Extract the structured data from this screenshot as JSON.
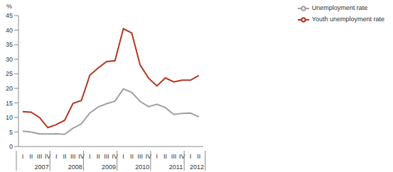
{
  "chart_data": {
    "type": "line",
    "ylabel": "%",
    "categories": [
      "I",
      "II",
      "III",
      "IV",
      "I",
      "II",
      "III",
      "IV",
      "I",
      "II",
      "III",
      "IV",
      "I",
      "II",
      "III",
      "IV",
      "I",
      "II",
      "III",
      "IV",
      "I",
      "II"
    ],
    "years": [
      "2007",
      "2007",
      "2007",
      "2007",
      "2008",
      "2008",
      "2008",
      "2008",
      "2009",
      "2009",
      "2009",
      "2009",
      "2010",
      "2010",
      "2010",
      "2010",
      "2011",
      "2011",
      "2011",
      "2011",
      "2012",
      "2012"
    ],
    "series": [
      {
        "name": "Youth unemployment rate",
        "color": "#b5341e",
        "values": [
          12,
          11.8,
          10,
          6.5,
          7.5,
          9,
          14.8,
          15.8,
          24.5,
          27,
          29.2,
          29.5,
          40.5,
          39,
          28,
          23.5,
          20.8,
          23.6,
          22.2,
          22.8,
          22.8,
          24.4
        ]
      },
      {
        "name": "Unemployment rate",
        "color": "#a0a0a0",
        "values": [
          5.3,
          5.0,
          4.3,
          4.3,
          4.4,
          4.2,
          6.3,
          7.8,
          11.5,
          13.6,
          14.7,
          15.6,
          19.8,
          18.6,
          15.5,
          13.7,
          14.5,
          13.4,
          11.0,
          11.4,
          11.5,
          10.2
        ]
      }
    ],
    "ylim": [
      0,
      45
    ],
    "yticks": [
      0,
      5,
      10,
      15,
      20,
      25,
      30,
      35,
      40,
      45
    ],
    "grid": false,
    "legend": "top right"
  }
}
